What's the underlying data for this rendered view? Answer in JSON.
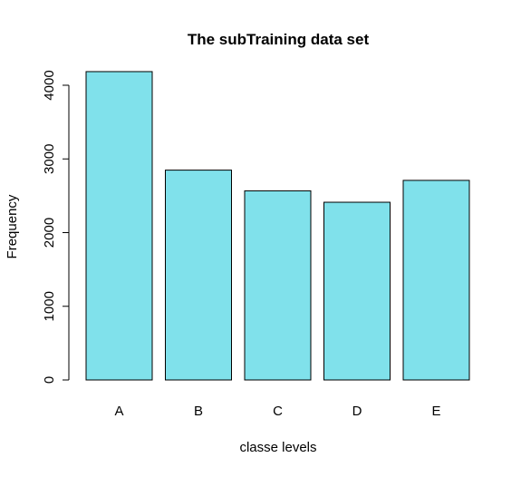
{
  "chart_data": {
    "type": "bar",
    "title": "The subTraining data set",
    "xlabel": "classe levels",
    "ylabel": "Frequency",
    "categories": [
      "A",
      "B",
      "C",
      "D",
      "E"
    ],
    "values": [
      4185,
      2848,
      2567,
      2412,
      2709
    ],
    "ylim": [
      0,
      4000
    ],
    "yticks": [
      0,
      1000,
      2000,
      3000,
      4000
    ],
    "ytick_labels": [
      "0",
      "1000",
      "2000",
      "3000",
      "4000"
    ],
    "grid": false,
    "legend": "none",
    "colors": {
      "bar_fill": "#80E1EB",
      "bar_stroke": "#000000"
    }
  }
}
